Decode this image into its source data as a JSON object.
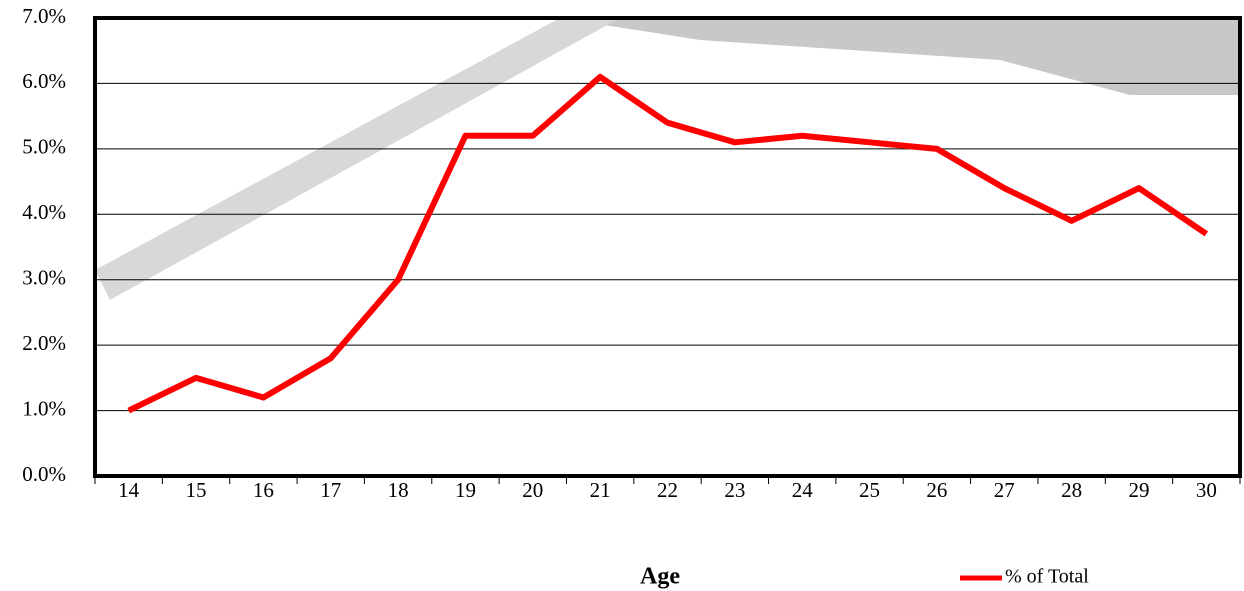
{
  "chart_data": {
    "type": "line",
    "x_label": "Age",
    "categories": [
      "14",
      "15",
      "16",
      "17",
      "18",
      "19",
      "20",
      "21",
      "22",
      "23",
      "24",
      "25",
      "26",
      "27",
      "28",
      "29",
      "30"
    ],
    "series": [
      {
        "name": "% of Total",
        "color": "#ff0000",
        "values": [
          1.0,
          1.5,
          1.2,
          1.8,
          3.0,
          5.2,
          5.2,
          6.1,
          5.4,
          5.1,
          5.2,
          5.1,
          5.0,
          4.4,
          3.9,
          4.4,
          3.7
        ]
      }
    ],
    "ylim": [
      0,
      7
    ],
    "yticks": [
      {
        "value": 0,
        "label": "0.0%"
      },
      {
        "value": 1,
        "label": "1.0%"
      },
      {
        "value": 2,
        "label": "2.0%"
      },
      {
        "value": 3,
        "label": "3.0%"
      },
      {
        "value": 4,
        "label": "4.0%"
      },
      {
        "value": 5,
        "label": "5.0%"
      },
      {
        "value": 6,
        "label": "6.0%"
      },
      {
        "value": 7,
        "label": "7.0%"
      }
    ],
    "grid": true,
    "legend": "bottom-right"
  }
}
